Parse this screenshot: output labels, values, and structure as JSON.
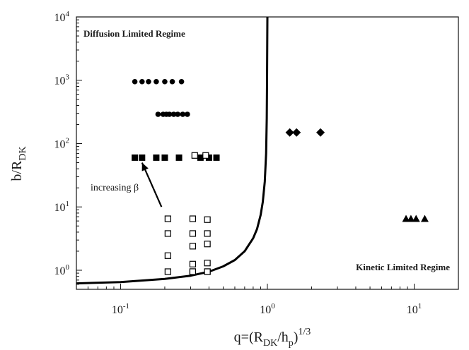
{
  "chart_data": {
    "type": "scatter",
    "title": "",
    "xlabel": "q=(R_DK/h_p)^1/3",
    "ylabel": "b/R_DK",
    "xscale": "log",
    "yscale": "log",
    "xlim": [
      0.05,
      20
    ],
    "ylim": [
      0.5,
      10000
    ],
    "xticks": [
      0.1,
      1,
      10
    ],
    "xtick_labels": [
      {
        "base": "10",
        "exp": "-1"
      },
      {
        "base": "10",
        "exp": "0"
      },
      {
        "base": "10",
        "exp": "1"
      }
    ],
    "yticks": [
      1,
      10,
      100,
      1000,
      10000
    ],
    "ytick_labels": [
      {
        "base": "10",
        "exp": "0"
      },
      {
        "base": "10",
        "exp": "1"
      },
      {
        "base": "10",
        "exp": "2"
      },
      {
        "base": "10",
        "exp": "3"
      },
      {
        "base": "10",
        "exp": "4"
      }
    ],
    "grid": false,
    "legend": "none",
    "annotations": {
      "diffusion_regime": "Diffusion Limited Regime",
      "kinetic_regime": "Kinetic Limited Regime",
      "increasing": "increasing β"
    },
    "arrow": {
      "from": [
        0.19,
        10
      ],
      "to": [
        0.14,
        50
      ]
    },
    "series": [
      {
        "marker": "circle",
        "x": [
          0.125,
          0.14,
          0.155,
          0.175,
          0.2,
          0.225,
          0.26
        ],
        "y": [
          950,
          950,
          950,
          950,
          950,
          950,
          950
        ]
      },
      {
        "marker": "circle",
        "x": [
          0.18,
          0.195,
          0.205,
          0.215,
          0.23,
          0.245,
          0.265,
          0.285
        ],
        "y": [
          290,
          290,
          290,
          290,
          290,
          290,
          290,
          290
        ]
      },
      {
        "marker": "filled-square",
        "x": [
          0.125,
          0.14,
          0.175,
          0.2,
          0.25,
          0.35,
          0.4,
          0.45
        ],
        "y": [
          60,
          60,
          60,
          60,
          60,
          60,
          60,
          60
        ]
      },
      {
        "marker": "open-square",
        "x": [
          0.21,
          0.21,
          0.21,
          0.21,
          0.31,
          0.31,
          0.31,
          0.31,
          0.31,
          0.31,
          0.39,
          0.39,
          0.39,
          0.39,
          0.39,
          0.39,
          0.32,
          0.38
        ],
        "y": [
          6.5,
          3.8,
          1.7,
          0.95,
          6.5,
          3.8,
          2.4,
          1.25,
          0.95,
          0.95,
          6.3,
          3.8,
          2.6,
          1.3,
          0.95,
          0.95,
          65,
          65
        ]
      },
      {
        "marker": "diamond",
        "x": [
          1.42,
          1.58,
          2.3
        ],
        "y": [
          150,
          150,
          150
        ]
      },
      {
        "marker": "triangle",
        "x": [
          8.8,
          9.5,
          10.3,
          11.8
        ],
        "y": [
          6.5,
          6.5,
          6.5,
          6.5
        ]
      }
    ],
    "curve": {
      "x": [
        0.05,
        0.1,
        0.2,
        0.3,
        0.4,
        0.5,
        0.6,
        0.7,
        0.8,
        0.85,
        0.9,
        0.93,
        0.96,
        0.98,
        0.99,
        0.995,
        0.998,
        1.0
      ],
      "y": [
        0.62,
        0.65,
        0.73,
        0.82,
        0.95,
        1.15,
        1.45,
        2.0,
        3.2,
        4.5,
        7.5,
        12,
        25,
        70,
        250,
        1000,
        4000,
        10000
      ]
    }
  }
}
